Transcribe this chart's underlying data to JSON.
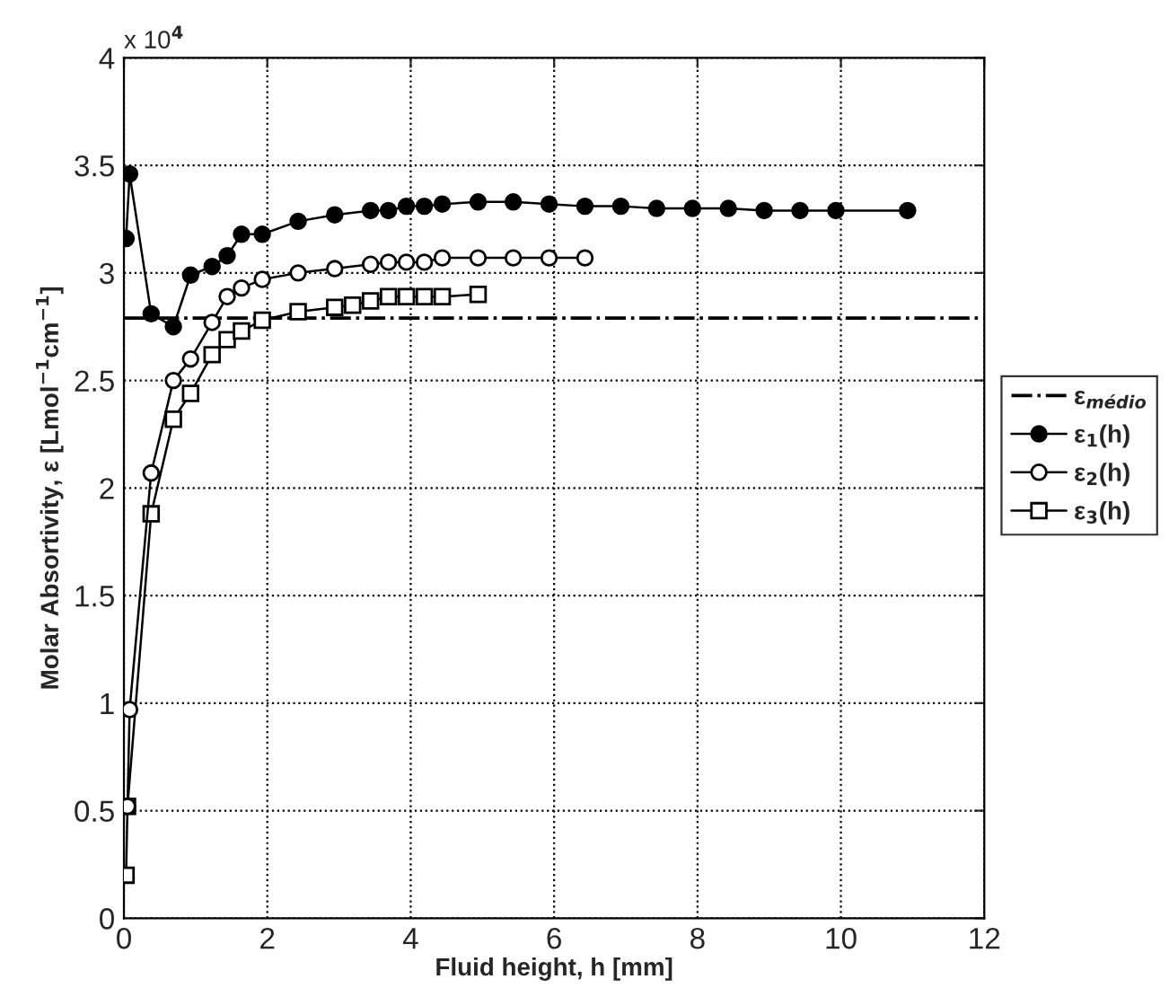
{
  "chart_data": {
    "type": "line",
    "xlabel": "Fluid height, h [mm]",
    "ylabel": "Molar Absortivity, ε [Lmol$^{−1}$cm$^{−1}$]",
    "annotations": [
      "x 10$^{4}$"
    ],
    "xlim": [
      0,
      12
    ],
    "xticks": [
      0,
      2,
      4,
      6,
      8,
      10,
      12
    ],
    "ylim": [
      0,
      4
    ],
    "yticks": [
      0,
      0.5,
      1,
      1.5,
      2,
      2.5,
      3,
      3.5,
      4
    ],
    "grid": true,
    "legend": "right",
    "ref_lines": [
      {
        "axis": "y",
        "value": 2.79,
        "label": "ε$_{médio}$",
        "color": "#000000",
        "line_style": "dashdot"
      }
    ],
    "series": [
      {
        "name": "ε$_{1}$(h)",
        "color": "#000000",
        "marker": "circle",
        "x": [
          0.03,
          0.08,
          0.38,
          0.69,
          0.93,
          1.23,
          1.44,
          1.64,
          1.93,
          2.43,
          2.94,
          3.44,
          3.69,
          3.94,
          4.19,
          4.44,
          4.94,
          5.43,
          5.93,
          6.43,
          6.93,
          7.43,
          7.93,
          8.43,
          8.93,
          9.43,
          9.93,
          10.93
        ],
        "values": [
          3.16,
          3.46,
          2.81,
          2.75,
          2.99,
          3.03,
          3.08,
          3.18,
          3.18,
          3.24,
          3.27,
          3.29,
          3.29,
          3.31,
          3.31,
          3.32,
          3.33,
          3.33,
          3.32,
          3.31,
          3.31,
          3.3,
          3.3,
          3.3,
          3.29,
          3.29,
          3.29,
          3.29
        ]
      },
      {
        "name": "ε$_{2}$(h)",
        "color": "#000000",
        "marker": "circle",
        "x": [
          0.05,
          0.08,
          0.38,
          0.69,
          0.93,
          1.23,
          1.44,
          1.64,
          1.93,
          2.43,
          2.94,
          3.44,
          3.69,
          3.94,
          4.19,
          4.44,
          4.94,
          5.43,
          5.93,
          6.43
        ],
        "values": [
          0.52,
          0.97,
          2.07,
          2.5,
          2.6,
          2.77,
          2.89,
          2.93,
          2.97,
          3.0,
          3.02,
          3.04,
          3.05,
          3.05,
          3.05,
          3.07,
          3.07,
          3.07,
          3.07,
          3.07
        ]
      },
      {
        "name": "ε$_{3}$(h)",
        "color": "#000000",
        "marker": "square",
        "x": [
          0.03,
          0.05,
          0.38,
          0.69,
          0.93,
          1.23,
          1.44,
          1.64,
          1.93,
          2.43,
          2.94,
          3.19,
          3.44,
          3.69,
          3.94,
          4.19,
          4.44,
          4.94
        ],
        "values": [
          0.2,
          0.52,
          1.88,
          2.32,
          2.44,
          2.62,
          2.69,
          2.73,
          2.78,
          2.82,
          2.84,
          2.85,
          2.87,
          2.89,
          2.89,
          2.89,
          2.89,
          2.9
        ]
      }
    ]
  }
}
